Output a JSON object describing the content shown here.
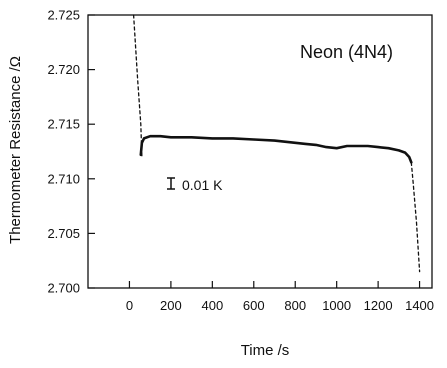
{
  "chart_data": {
    "type": "line",
    "title": "",
    "xlabel": "Time /s",
    "ylabel": "Thermometer Resistance /Ω",
    "xlim": [
      -200,
      1460
    ],
    "ylim": [
      2.7,
      2.725
    ],
    "xticks": [
      0,
      200,
      400,
      600,
      800,
      1000,
      1200,
      1400
    ],
    "yticks": [
      2.7,
      2.705,
      2.71,
      2.715,
      2.72,
      2.725
    ],
    "ytick_labels": [
      "2.700",
      "2.705",
      "2.710",
      "2.715",
      "2.720",
      "2.725"
    ],
    "grid": false,
    "annotations": {
      "sample_label": "Neon (4N4)",
      "scale_bar_label": "0.01 K"
    },
    "series": [
      {
        "style": "dashed",
        "points": [
          [
            20,
            2.725
          ],
          [
            40,
            2.719
          ],
          [
            55,
            2.715
          ],
          [
            60,
            2.712
          ]
        ]
      },
      {
        "style": "solid",
        "points": [
          [
            55,
            2.7122
          ],
          [
            60,
            2.7133
          ],
          [
            70,
            2.7137
          ],
          [
            100,
            2.7139
          ],
          [
            150,
            2.7139
          ],
          [
            200,
            2.7138
          ],
          [
            300,
            2.7138
          ],
          [
            400,
            2.7137
          ],
          [
            500,
            2.7137
          ],
          [
            600,
            2.7136
          ],
          [
            700,
            2.7135
          ],
          [
            800,
            2.7133
          ],
          [
            850,
            2.7132
          ],
          [
            900,
            2.7131
          ],
          [
            950,
            2.7129
          ],
          [
            1000,
            2.7128
          ],
          [
            1050,
            2.713
          ],
          [
            1100,
            2.713
          ],
          [
            1150,
            2.713
          ],
          [
            1200,
            2.7129
          ],
          [
            1250,
            2.7128
          ],
          [
            1300,
            2.7126
          ],
          [
            1330,
            2.7124
          ],
          [
            1350,
            2.712
          ],
          [
            1360,
            2.7115
          ]
        ]
      },
      {
        "style": "dashed",
        "points": [
          [
            1360,
            2.7115
          ],
          [
            1370,
            2.7095
          ],
          [
            1385,
            2.706
          ],
          [
            1400,
            2.7015
          ]
        ]
      }
    ]
  }
}
